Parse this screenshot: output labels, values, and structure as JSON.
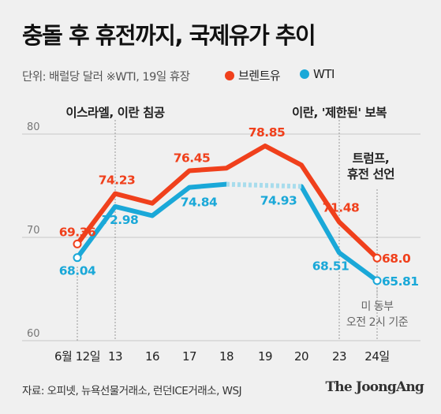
{
  "header": {
    "title": "충돌 후 휴전까지, 국제유가 추이",
    "subtitle": "단위: 배럴당 달러 ※WTI, 19일 휴장"
  },
  "legend": [
    {
      "label": "브렌트유",
      "color": "#f0401c"
    },
    {
      "label": "WTI",
      "color": "#1aa8d8"
    }
  ],
  "chart_data": {
    "type": "line",
    "categories": [
      "6월 12일",
      "13",
      "16",
      "17",
      "18",
      "19",
      "20",
      "23",
      "24일"
    ],
    "ylim": [
      60,
      80
    ],
    "yticks": [
      60,
      70,
      80
    ],
    "grid": true,
    "series": [
      {
        "name": "브렌트유",
        "color": "#f0401c",
        "values": [
          69.36,
          74.23,
          73.3,
          76.45,
          76.7,
          78.85,
          77.0,
          71.48,
          68.0
        ]
      },
      {
        "name": "WTI",
        "color": "#1aa8d8",
        "values": [
          68.04,
          72.98,
          72.1,
          74.84,
          75.14,
          null,
          74.93,
          68.51,
          65.81
        ],
        "dashed_gap": [
          4,
          6
        ]
      }
    ],
    "data_labels": [
      {
        "series": 0,
        "index": 0,
        "text": "69.36"
      },
      {
        "series": 0,
        "index": 1,
        "text": "74.23"
      },
      {
        "series": 0,
        "index": 3,
        "text": "76.45"
      },
      {
        "series": 0,
        "index": 5,
        "text": "78.85"
      },
      {
        "series": 0,
        "index": 7,
        "text": "71.48"
      },
      {
        "series": 0,
        "index": 8,
        "text": "68.0"
      },
      {
        "series": 1,
        "index": 0,
        "text": "68.04"
      },
      {
        "series": 1,
        "index": 1,
        "text": "72.98"
      },
      {
        "series": 1,
        "index": 3,
        "text": "74.84"
      },
      {
        "series": 1,
        "index": 6,
        "text": "74.93"
      },
      {
        "series": 1,
        "index": 7,
        "text": "68.51"
      },
      {
        "series": 1,
        "index": 8,
        "text": "65.81"
      }
    ],
    "annotations": [
      {
        "index": 1,
        "lines": [
          "이스라엘, 이란 침공"
        ]
      },
      {
        "index": 7,
        "lines": [
          "이란, '제한된' 보복"
        ]
      },
      {
        "index": 8,
        "lines": [
          "트럼프,",
          "휴전 선언"
        ]
      },
      {
        "index": 8,
        "lines": [
          "미 동부",
          "오전 2시 기준"
        ]
      }
    ]
  },
  "footer": {
    "source": "자료: 오피넷, 뉴욕선물거래소, 런던ICE거래소, WSJ",
    "brand": "The JoongAng"
  }
}
